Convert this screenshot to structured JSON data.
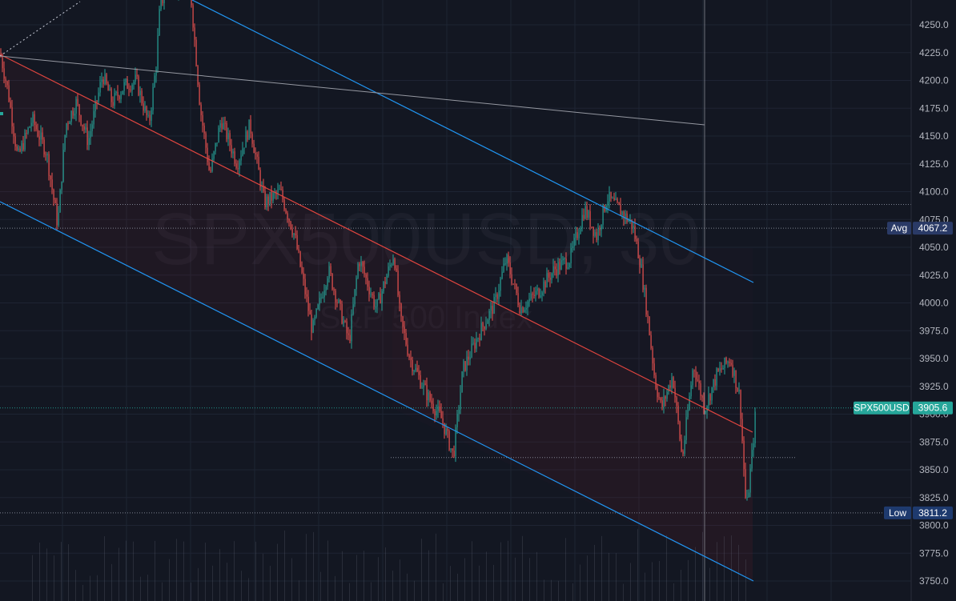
{
  "chart_data": {
    "type": "candlestick",
    "symbol_watermark": "SPX500USD, 30",
    "subtitle_watermark": "S&P 500 Index",
    "ylim": [
      3735,
      4280
    ],
    "y_ticks": [
      "3750.0",
      "3775.0",
      "3800.0",
      "3825.0",
      "3850.0",
      "3875.0",
      "3900.0",
      "3925.0",
      "3950.0",
      "3975.0",
      "4000.0",
      "4025.0",
      "4050.0",
      "4075.0",
      "4100.0",
      "4125.0",
      "4150.0",
      "4175.0",
      "4200.0",
      "4225.0",
      "4250.0"
    ],
    "price_path": [
      [
        0,
        4225
      ],
      [
        10,
        4190
      ],
      [
        22,
        4130
      ],
      [
        40,
        4165
      ],
      [
        58,
        4135
      ],
      [
        72,
        4070
      ],
      [
        82,
        4160
      ],
      [
        95,
        4180
      ],
      [
        110,
        4145
      ],
      [
        128,
        4205
      ],
      [
        140,
        4180
      ],
      [
        155,
        4195
      ],
      [
        170,
        4200
      ],
      [
        186,
        4160
      ],
      [
        195,
        4215
      ],
      [
        200,
        4270
      ],
      [
        215,
        4285
      ],
      [
        238,
        4280
      ],
      [
        250,
        4175
      ],
      [
        262,
        4115
      ],
      [
        276,
        4165
      ],
      [
        296,
        4125
      ],
      [
        312,
        4160
      ],
      [
        330,
        4090
      ],
      [
        350,
        4100
      ],
      [
        368,
        4060
      ],
      [
        390,
        3975
      ],
      [
        410,
        4030
      ],
      [
        436,
        3965
      ],
      [
        448,
        4040
      ],
      [
        470,
        3995
      ],
      [
        492,
        4045
      ],
      [
        500,
        3985
      ],
      [
        512,
        3950
      ],
      [
        535,
        3915
      ],
      [
        552,
        3895
      ],
      [
        566,
        3862
      ],
      [
        578,
        3940
      ],
      [
        600,
        3975
      ],
      [
        618,
        4000
      ],
      [
        632,
        4040
      ],
      [
        650,
        3995
      ],
      [
        672,
        4010
      ],
      [
        692,
        4030
      ],
      [
        712,
        4040
      ],
      [
        730,
        4085
      ],
      [
        745,
        4060
      ],
      [
        758,
        4095
      ],
      [
        772,
        4085
      ],
      [
        790,
        4070
      ],
      [
        800,
        4035
      ],
      [
        810,
        3980
      ],
      [
        818,
        3930
      ],
      [
        826,
        3905
      ],
      [
        840,
        3935
      ],
      [
        852,
        3860
      ],
      [
        866,
        3945
      ],
      [
        880,
        3905
      ],
      [
        895,
        3935
      ],
      [
        912,
        3950
      ],
      [
        924,
        3915
      ],
      [
        932,
        3812
      ],
      [
        940,
        3870
      ],
      [
        944,
        3906
      ]
    ],
    "series": [
      {
        "name": "SPX500USD",
        "last": "3905.6",
        "color": "#26a69a"
      }
    ],
    "labels": {
      "avg": {
        "label": "Avg",
        "value": "4067.2",
        "price": 4067.2
      },
      "low": {
        "label": "Low",
        "value": "3811.2",
        "price": 3811.2
      },
      "last": {
        "label": "SPX500USD",
        "value": "3905.6",
        "price": 3905.6
      }
    },
    "hlines": [
      {
        "price": 4088.5,
        "style": "dotted",
        "color": "#8f95a3"
      },
      {
        "price": 4067.2,
        "style": "dotted",
        "color": "#8f95a3"
      },
      {
        "price": 3905.6,
        "style": "dotted",
        "color": "#26a69a"
      },
      {
        "price": 3861.0,
        "style": "dotted",
        "color": "#8f95a3"
      },
      {
        "price": 3811.2,
        "style": "dotted",
        "color": "#8f95a3"
      }
    ],
    "grid": true
  },
  "colors": {
    "background": "#131722",
    "grid": "#1e2433",
    "up": "#26a69a",
    "down": "#ef5350",
    "channel": "#2196f3",
    "midline": "#e0453f",
    "trendline": "#9598a1",
    "avg_tag": "#2a3a66",
    "low_tag": "#1e3a6e"
  }
}
